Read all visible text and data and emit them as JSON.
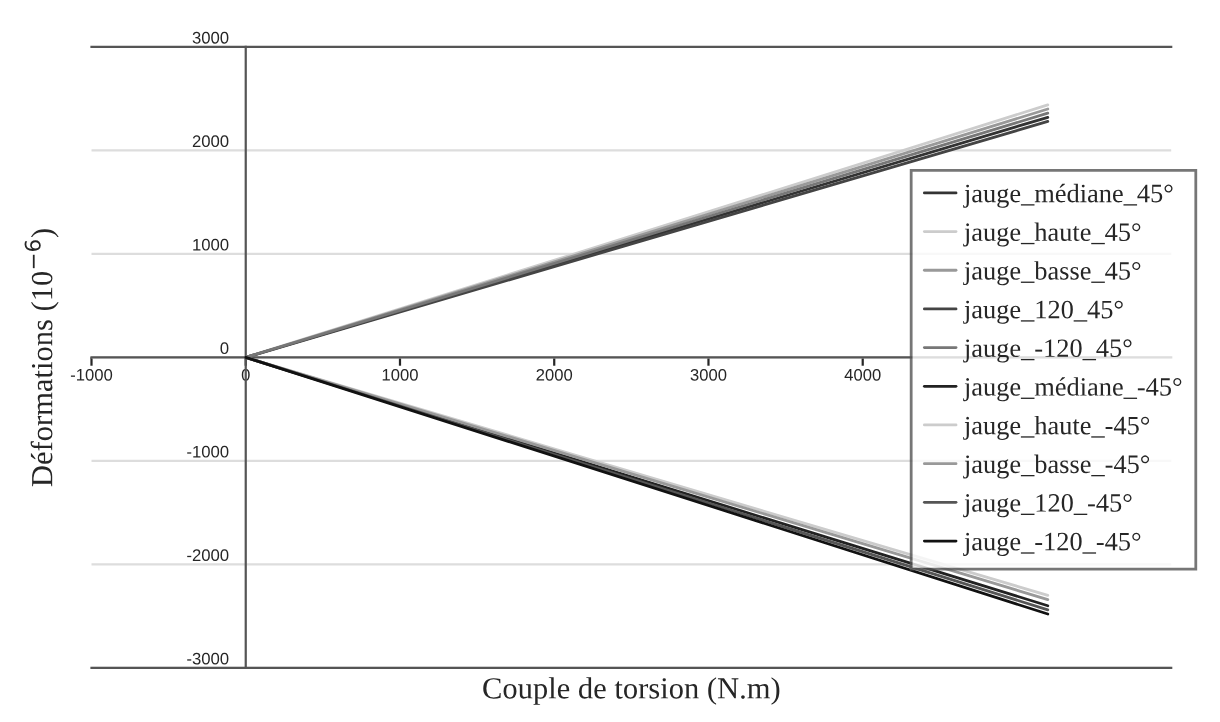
{
  "chart_data": {
    "type": "line",
    "xlabel": "Couple de torsion (N.m)",
    "ylabel": "Déformations (10$^{−6}$)",
    "xlim": [
      -1000,
      6000
    ],
    "xticks": [
      -1000,
      0,
      1000,
      2000,
      3000,
      4000
    ],
    "ylim": [
      -3000,
      3000
    ],
    "yticks": [
      -3000,
      -2000,
      -1000,
      0,
      1000,
      2000,
      3000
    ],
    "grid": "y",
    "legend": "right",
    "marker": "none",
    "line_style": "solid",
    "x": [
      0,
      5200
    ],
    "series": [
      {
        "name": "jauge_médiane_45°",
        "color": "#333333",
        "values": [
          0,
          2320
        ]
      },
      {
        "name": "jauge_haute_45°",
        "color": "#cccccc",
        "values": [
          0,
          2440
        ]
      },
      {
        "name": "jauge_basse_45°",
        "color": "#999999",
        "values": [
          0,
          2400
        ]
      },
      {
        "name": "jauge_120_45°",
        "color": "#444444",
        "values": [
          0,
          2280
        ]
      },
      {
        "name": "jauge_-120_45°",
        "color": "#777777",
        "values": [
          0,
          2360
        ]
      },
      {
        "name": "jauge_médiane_-45°",
        "color": "#222222",
        "values": [
          0,
          -2400
        ]
      },
      {
        "name": "jauge_haute_-45°",
        "color": "#cccccc",
        "values": [
          0,
          -2300
        ]
      },
      {
        "name": "jauge_basse_-45°",
        "color": "#999999",
        "values": [
          0,
          -2340
        ]
      },
      {
        "name": "jauge_120_-45°",
        "color": "#555555",
        "values": [
          0,
          -2440
        ]
      },
      {
        "name": "jauge_-120_-45°",
        "color": "#111111",
        "values": [
          0,
          -2480
        ]
      }
    ]
  }
}
